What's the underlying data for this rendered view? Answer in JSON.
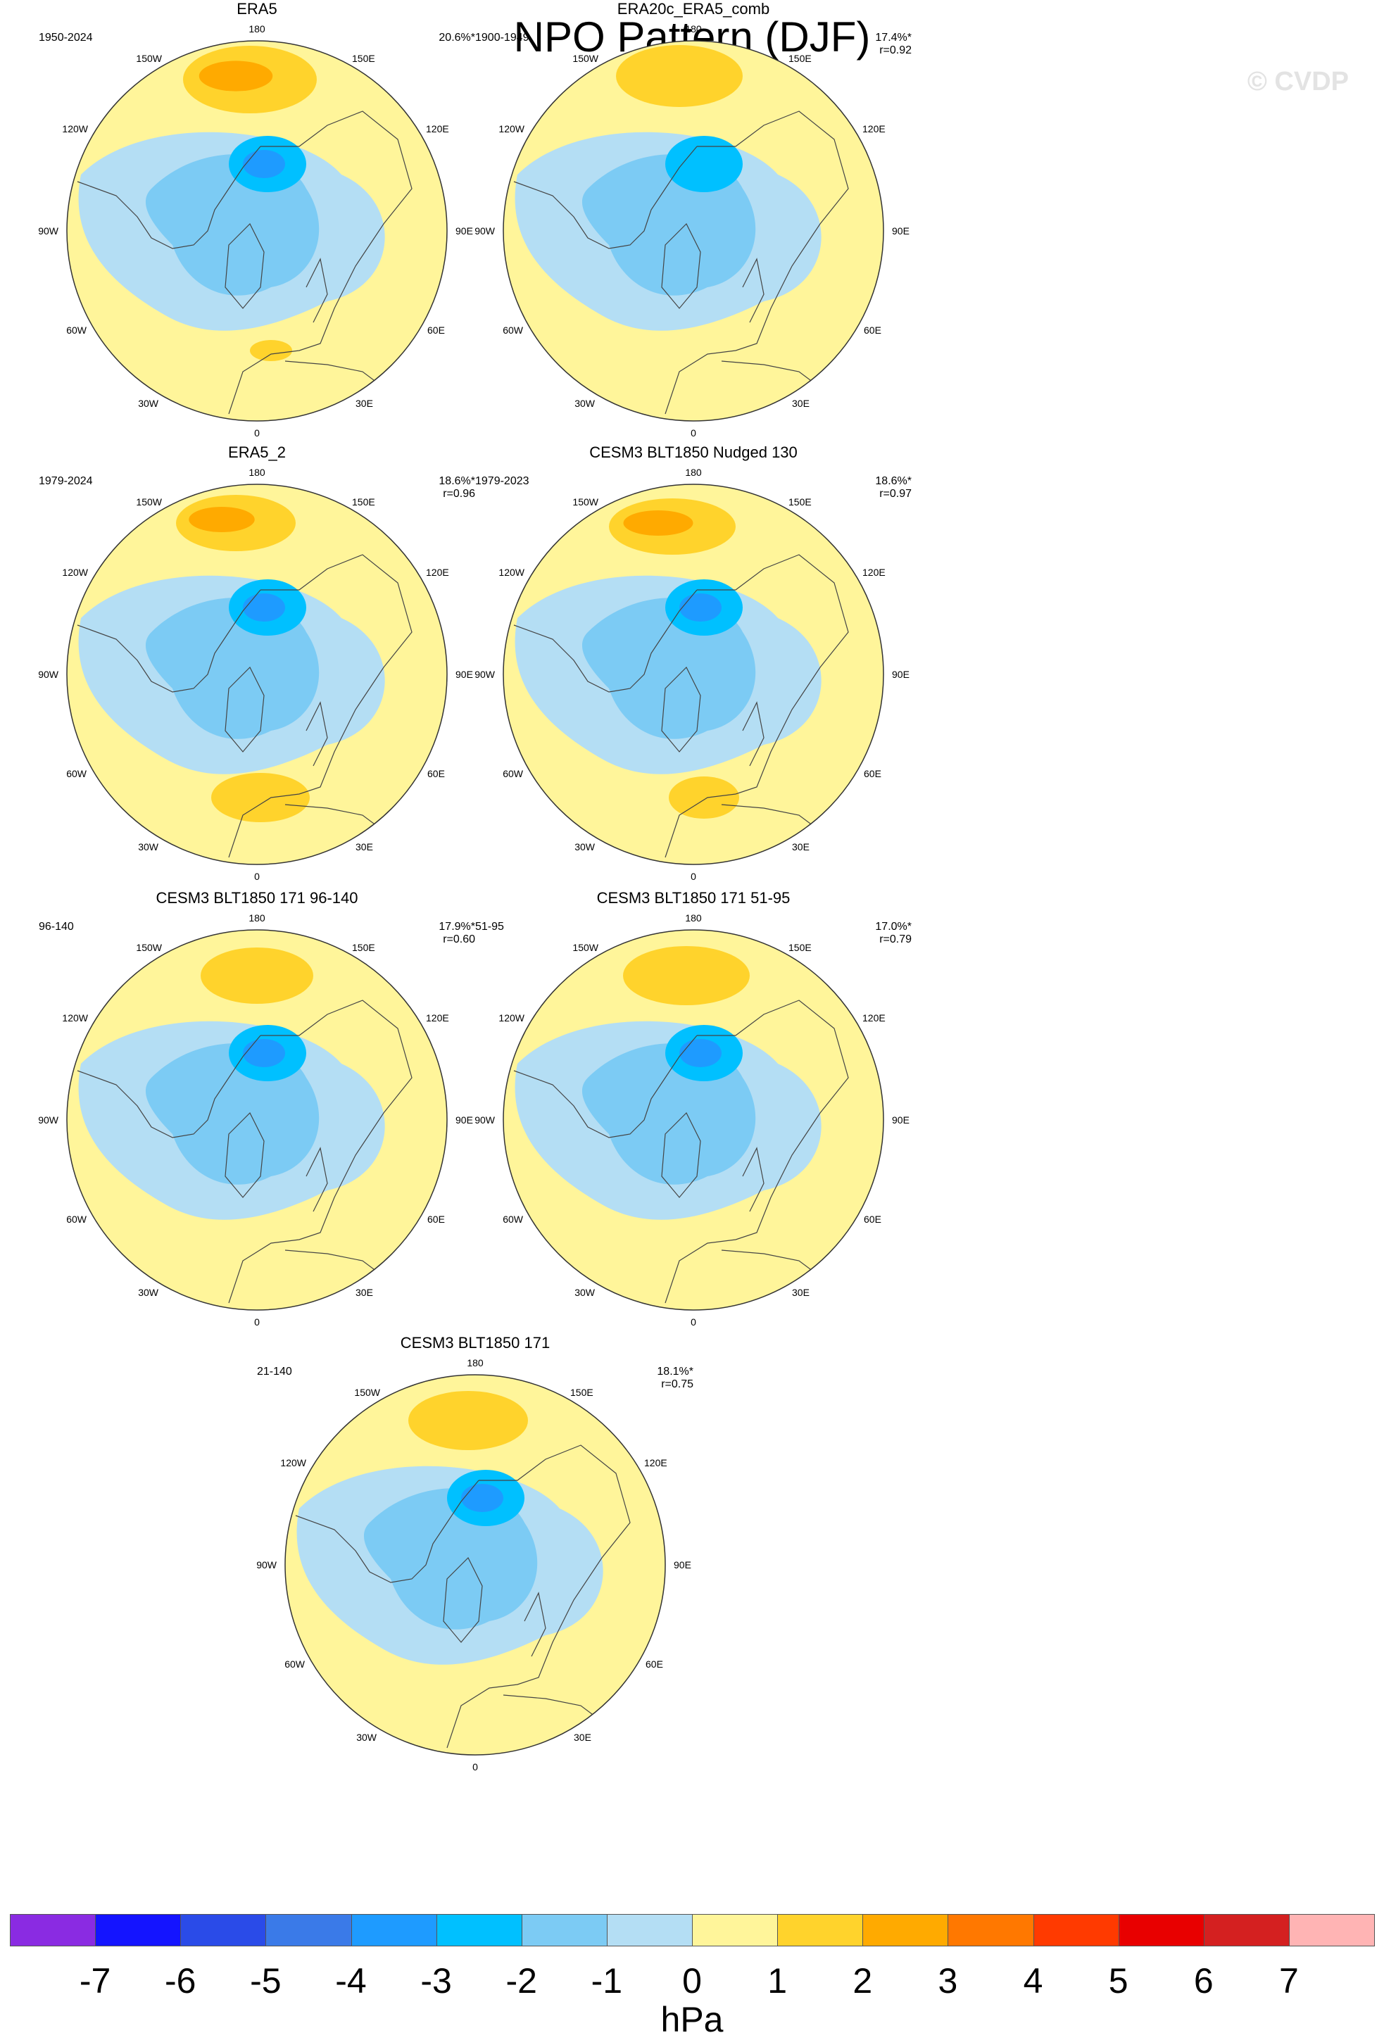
{
  "title": "NPO Pattern (DJF)",
  "copyright": "© CVDP",
  "units": "hPa",
  "lon_labels": {
    "top": "180",
    "bottom": "0",
    "left": "90W",
    "right": "90E",
    "ul1": "150W",
    "ul2": "120W",
    "ur1": "150E",
    "ur2": "120E",
    "ll1": "60W",
    "ll2": "30W",
    "lr1": "60E",
    "lr2": "30E"
  },
  "panels": [
    {
      "title": "ERA5",
      "period": "1950-2024",
      "pct": "20.6%*",
      "r": ""
    },
    {
      "title": "ERA20c_ERA5_comb",
      "period": "1900-1949",
      "pct": "17.4%*",
      "r": "r=0.92"
    },
    {
      "title": "ERA5_2",
      "period": "1979-2024",
      "pct": "18.6%*",
      "r": "r=0.96"
    },
    {
      "title": "CESM3 BLT1850 Nudged 130",
      "period": "1979-2023",
      "pct": "18.6%*",
      "r": "r=0.97"
    },
    {
      "title": "CESM3 BLT1850 171 96-140",
      "period": "96-140",
      "pct": "17.9%*",
      "r": "r=0.60"
    },
    {
      "title": "CESM3 BLT1850 171 51-95",
      "period": "51-95",
      "pct": "17.0%*",
      "r": "r=0.79"
    },
    {
      "title": "CESM3 BLT1850 171",
      "period": "21-140",
      "pct": "18.1%*",
      "r": "r=0.75"
    }
  ],
  "colorbar": {
    "colors": [
      "#8a2be2",
      "#1414ff",
      "#2a4be8",
      "#3a7ae8",
      "#1e9bff",
      "#00c0ff",
      "#7ccbf4",
      "#b4def4",
      "#fff59a",
      "#ffd32c",
      "#ffaa00",
      "#ff7800",
      "#ff3a00",
      "#e80000",
      "#d42020",
      "#ffb4b4"
    ],
    "labels": [
      "-7",
      "-6",
      "-5",
      "-4",
      "-3",
      "-2",
      "-1",
      "0",
      "1",
      "2",
      "3",
      "4",
      "5",
      "6",
      "7"
    ]
  }
}
